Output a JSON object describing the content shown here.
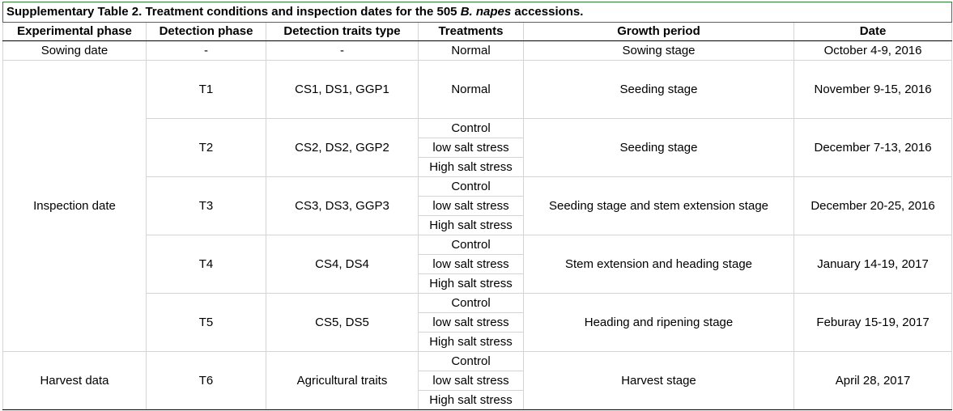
{
  "table": {
    "title_prefix": "Supplementary Table 2. Treatment conditions and inspection dates for the 505 ",
    "title_italic": "B. napes",
    "title_suffix": " accessions.",
    "headers": [
      "Experimental phase",
      "Detection phase",
      "Detection traits type",
      "Treatments",
      "Growth period",
      "Date"
    ],
    "sowing": {
      "phase": "Sowing date",
      "detection": "-",
      "traits": "-",
      "treatment": "Normal",
      "growth": "Sowing stage",
      "date": "October 4-9, 2016"
    },
    "inspection_label": "Inspection date",
    "harvest_label": "Harvest data",
    "rows": [
      {
        "detection": "T1",
        "traits": "CS1, DS1, GGP1",
        "treatments": [
          "Normal"
        ],
        "growth": "Seeding stage",
        "date": "November 9-15, 2016"
      },
      {
        "detection": "T2",
        "traits": "CS2, DS2, GGP2",
        "treatments": [
          "Control",
          "low salt stress",
          "High salt stress"
        ],
        "growth": "Seeding stage",
        "date": "December 7-13, 2016"
      },
      {
        "detection": "T3",
        "traits": "CS3, DS3, GGP3",
        "treatments": [
          "Control",
          "low salt stress",
          "High salt stress"
        ],
        "growth": "Seeding stage and stem extension stage",
        "date": "December 20-25, 2016"
      },
      {
        "detection": "T4",
        "traits": "CS4, DS4",
        "treatments": [
          "Control",
          "low salt stress",
          "High salt stress"
        ],
        "growth": "Stem extension and heading stage",
        "date": "January 14-19, 2017"
      },
      {
        "detection": "T5",
        "traits": "CS5, DS5",
        "treatments": [
          "Control",
          "low salt stress",
          "High salt stress"
        ],
        "growth": "Heading and ripening stage",
        "date": "Feburay 15-19, 2017"
      },
      {
        "detection": "T6",
        "traits": "Agricultural traits",
        "treatments": [
          "Control",
          "low salt stress",
          "High salt stress"
        ],
        "growth": "Harvest stage",
        "date": "April 28, 2017"
      }
    ]
  }
}
